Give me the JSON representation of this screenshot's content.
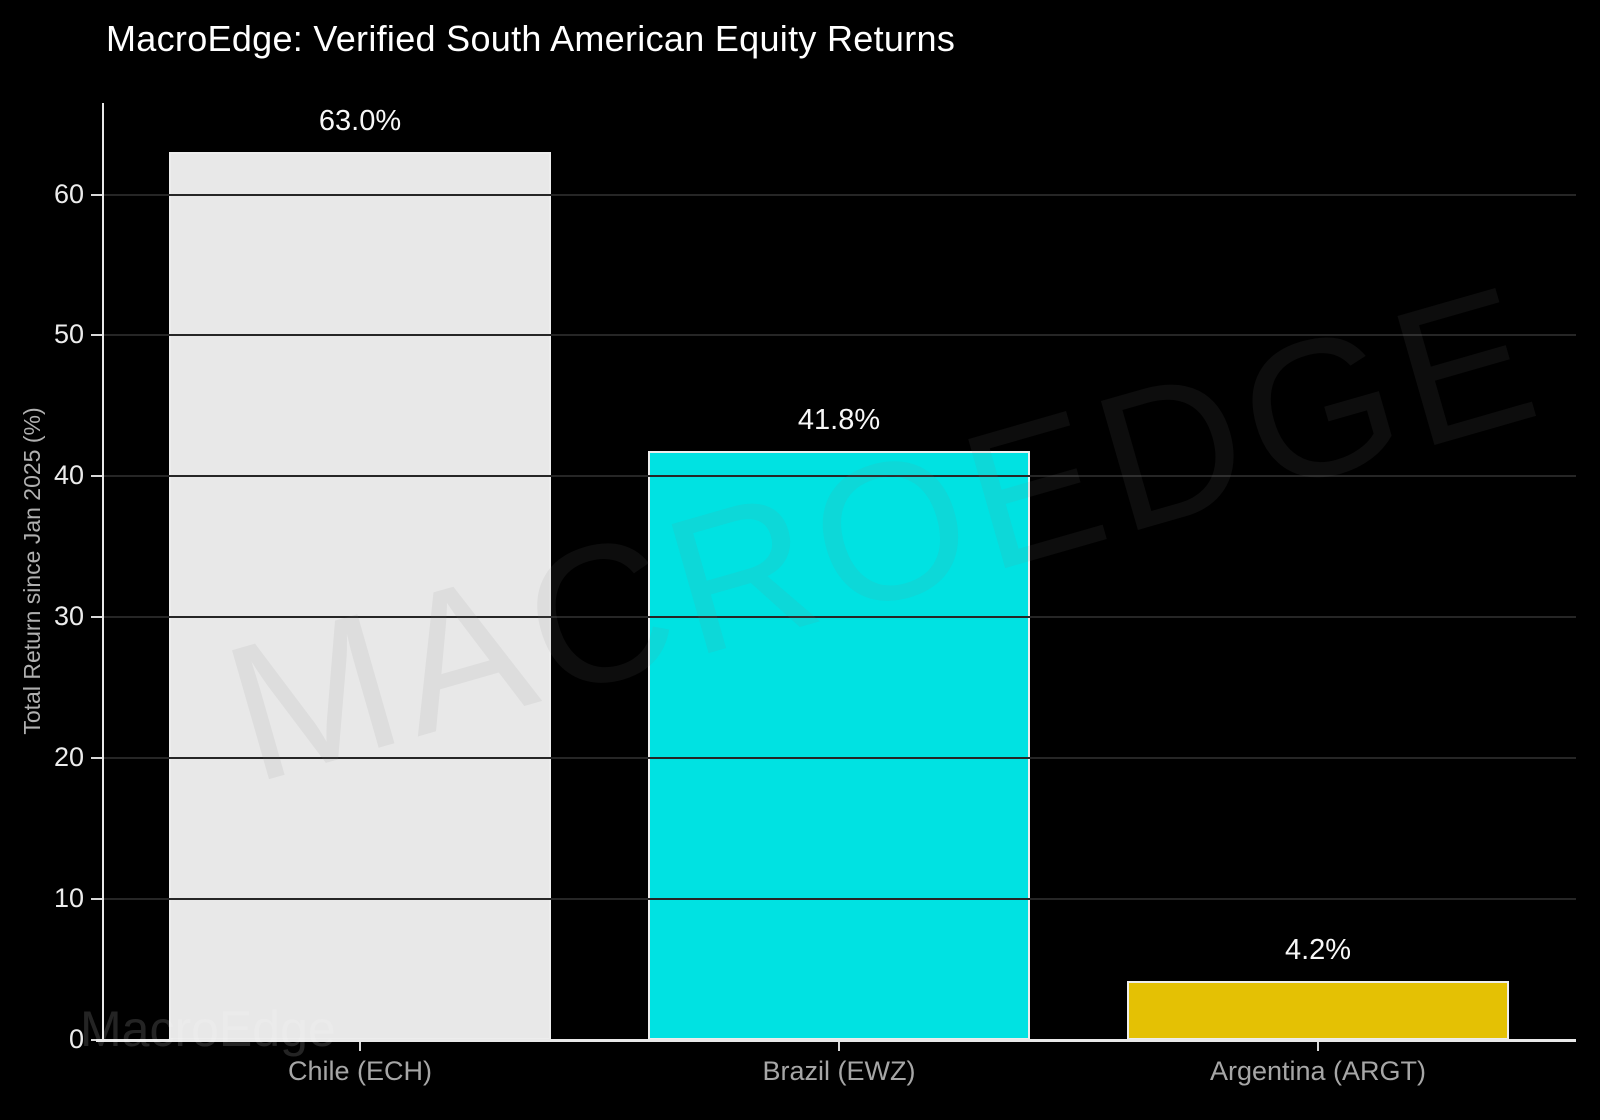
{
  "header": {
    "title": "MacroEdge: Verified South American Equity Returns"
  },
  "watermarks": {
    "diagonal": "MACROEDGE",
    "corner": "MacroEdge"
  },
  "chart_data": {
    "type": "bar",
    "title": "MacroEdge: Verified South American Equity Returns",
    "categories": [
      "Chile (ECH)",
      "Brazil (EWZ)",
      "Argentina (ARGT)"
    ],
    "values": [
      63.0,
      41.8,
      4.2
    ],
    "value_labels": [
      "63.0%",
      "41.8%",
      "4.2%"
    ],
    "bar_colors": [
      "#e8e8e8",
      "#00e2e2",
      "#e4c104"
    ],
    "bar_edge_color": "#ededed",
    "xlabel": "",
    "ylabel": "Total Return since Jan 2025 (%)",
    "yticks": [
      0,
      10,
      20,
      30,
      40,
      50,
      60
    ],
    "ytick_labels": [
      "0",
      "10",
      "20",
      "30",
      "40",
      "50",
      "60"
    ],
    "ylim": [
      0,
      66.5
    ],
    "grid": "horizontal",
    "legend": "none",
    "background_color": "#000000",
    "axis_color": "#e8e8e8",
    "title_color": "#ffffff"
  }
}
